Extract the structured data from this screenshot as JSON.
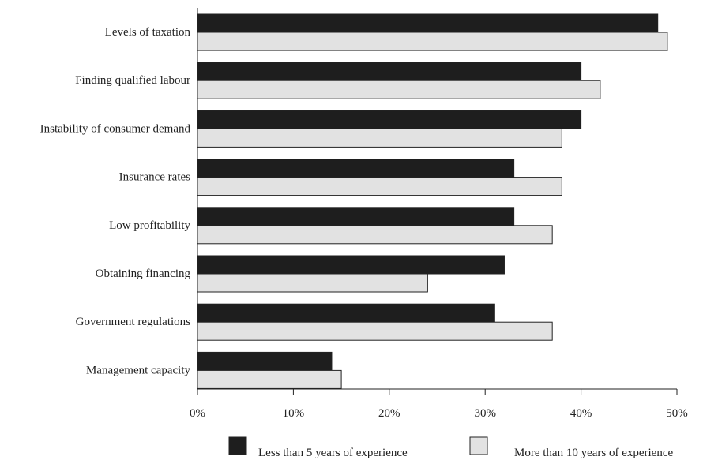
{
  "chart_data": {
    "type": "bar",
    "orientation": "horizontal",
    "title": "",
    "xlabel": "",
    "ylabel": "",
    "categories": [
      "Levels of taxation",
      "Finding qualified labour",
      "Instability of consumer demand",
      "Insurance rates",
      "Low profitability",
      "Obtaining financing",
      "Government regulations",
      "Management capacity"
    ],
    "series": [
      {
        "name": "Less than 5 years of experience",
        "color": "#1e1e1e",
        "values": [
          48,
          40,
          40,
          33,
          33,
          32,
          31,
          14
        ]
      },
      {
        "name": "More than 10 years of experience",
        "color": "#e2e2e2",
        "values": [
          49,
          42,
          38,
          38,
          37,
          24,
          37,
          15
        ]
      }
    ],
    "xlim": [
      0,
      50
    ],
    "x_ticks": [
      0,
      10,
      20,
      30,
      40,
      50
    ],
    "x_tick_labels": [
      "0%",
      "10%",
      "20%",
      "30%",
      "40%",
      "50%"
    ],
    "grid": false,
    "legend_position": "bottom"
  }
}
